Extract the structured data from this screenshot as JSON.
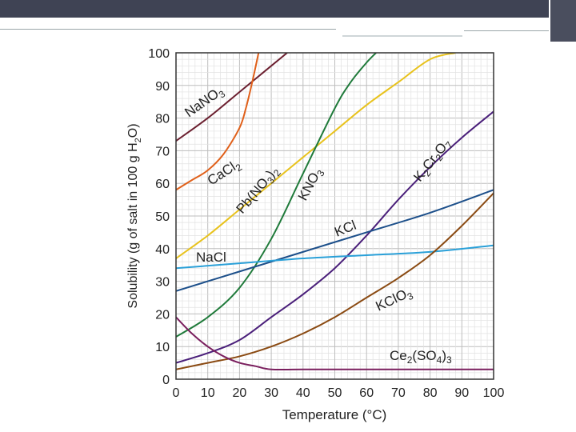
{
  "slide": {
    "header_color": "#3f4354"
  },
  "chart_data": {
    "type": "line",
    "title": "",
    "xlabel": "Temperature (°C)",
    "ylabel": "Solubility (g of salt in 100 g H₂O)",
    "xlim": [
      0,
      100
    ],
    "ylim": [
      0,
      100
    ],
    "xticks": [
      "0",
      "10",
      "20",
      "30",
      "40",
      "50",
      "60",
      "70",
      "80",
      "90",
      "100"
    ],
    "yticks": [
      "0",
      "10",
      "20",
      "30",
      "40",
      "50",
      "60",
      "70",
      "80",
      "90",
      "100"
    ],
    "grid": true,
    "series": [
      {
        "name": "NaNO3",
        "label_main": "NaNO",
        "label_sub": "3",
        "color": "#6b1f2f",
        "x": [
          0,
          10,
          20,
          30,
          35
        ],
        "y": [
          73,
          80,
          88,
          96,
          100
        ]
      },
      {
        "name": "CaCl2",
        "label_main": "CaCl",
        "label_sub": "2",
        "color": "#e0601a",
        "x": [
          0,
          5,
          10,
          15,
          20,
          22,
          24,
          26
        ],
        "y": [
          58,
          61,
          64,
          69,
          77,
          83,
          91,
          100
        ]
      },
      {
        "name": "Pb(NO3)2",
        "label_main": "Pb(NO",
        "label_sub": "3",
        "label_tail": ")2",
        "color": "#e8c21c",
        "x": [
          0,
          10,
          20,
          30,
          40,
          50,
          60,
          70,
          80,
          88
        ],
        "y": [
          37,
          44,
          52,
          60,
          68,
          76,
          84,
          91,
          98,
          100
        ]
      },
      {
        "name": "KNO3",
        "label_main": "KNO",
        "label_sub": "3",
        "color": "#1f7a3a",
        "x": [
          0,
          10,
          20,
          30,
          40,
          50,
          55,
          60,
          63
        ],
        "y": [
          13,
          19,
          28,
          43,
          63,
          83,
          91,
          97,
          100
        ]
      },
      {
        "name": "K2Cr2O7",
        "label_main": "K",
        "label_sub": "2",
        "label_tail": "Cr2O7",
        "color": "#4a1f7a",
        "x": [
          0,
          10,
          20,
          30,
          40,
          50,
          60,
          70,
          80,
          90,
          100
        ],
        "y": [
          5,
          8,
          12,
          19,
          26,
          34,
          44,
          55,
          65,
          74,
          82
        ]
      },
      {
        "name": "KCl",
        "label_main": "KCl",
        "color": "#1c4f8a",
        "x": [
          0,
          20,
          40,
          60,
          80,
          100
        ],
        "y": [
          27,
          33,
          39,
          45,
          51,
          58
        ]
      },
      {
        "name": "NaCl",
        "label_main": "NaCl",
        "color": "#2aa0d8",
        "x": [
          0,
          20,
          40,
          60,
          80,
          100
        ],
        "y": [
          34,
          35.5,
          37,
          38,
          39,
          41
        ]
      },
      {
        "name": "KClO3",
        "label_main": "KClO",
        "label_sub": "3",
        "color": "#8a4a12",
        "x": [
          0,
          10,
          20,
          30,
          40,
          50,
          60,
          70,
          80,
          90,
          100
        ],
        "y": [
          3,
          5,
          7,
          10,
          14,
          19,
          25,
          31,
          38,
          47,
          57
        ]
      },
      {
        "name": "Ce2(SO4)3",
        "label_main": "Ce",
        "label_sub": "2",
        "label_tail": "(SO4)3",
        "color": "#7a1f5e",
        "x": [
          0,
          5,
          10,
          15,
          20,
          25,
          30,
          40,
          60,
          100
        ],
        "y": [
          19,
          14,
          10,
          7,
          5,
          4,
          3,
          3,
          3,
          3
        ]
      }
    ],
    "labels": {
      "nano3": {
        "text": "NaNO",
        "sub": "3"
      },
      "cacl2": {
        "text": "CaCl",
        "sub": "2"
      },
      "pbno32": {
        "text": "Pb(NO",
        "sub": "3",
        "tail": ")",
        "tail_sub": "2"
      },
      "kno3": {
        "text": "KNO",
        "sub": "3"
      },
      "k2cr2o7": {
        "text": "K",
        "sub": "2",
        "mid": "Cr",
        "sub2": "2",
        "mid2": "O",
        "sub3": "7"
      },
      "kcl": {
        "text": "KCl"
      },
      "nacl": {
        "text": "NaCl"
      },
      "kclo3": {
        "text": "KClO",
        "sub": "3"
      },
      "ce2so43": {
        "text": "Ce",
        "sub": "2",
        "mid": "(SO",
        "sub2": "4",
        "tail": ")",
        "tail_sub": "3"
      }
    }
  }
}
